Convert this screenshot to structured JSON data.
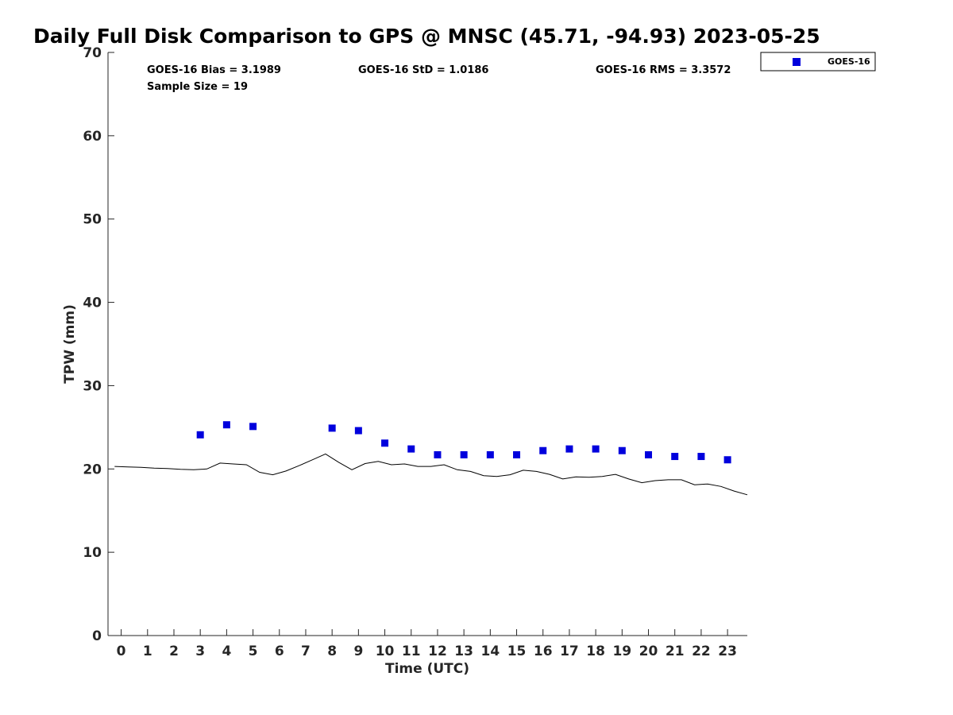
{
  "chart_data": {
    "type": "scatter",
    "title": "Daily Full Disk Comparison to GPS @ MNSC (45.71, -94.93) 2023-05-25",
    "xlabel": "Time (UTC)",
    "ylabel": "TPW (mm)",
    "xlim": [
      -0.5,
      23.75
    ],
    "ylim": [
      0,
      70
    ],
    "x_ticks": [
      0,
      1,
      2,
      3,
      4,
      5,
      6,
      7,
      8,
      9,
      10,
      11,
      12,
      13,
      14,
      15,
      16,
      17,
      18,
      19,
      20,
      21,
      22,
      23
    ],
    "y_ticks": [
      0,
      10,
      20,
      30,
      40,
      50,
      60,
      70
    ],
    "grid": false,
    "legend_position": "top-right",
    "stats": {
      "bias": "GOES-16 Bias = 3.1989",
      "std": "GOES-16 StD = 1.0186",
      "rms": "GOES-16 RMS = 3.3572",
      "sample": "Sample Size = 19"
    },
    "series": [
      {
        "name": "GOES-16",
        "type": "scatter",
        "color": "#0000dd",
        "marker": "square",
        "x": [
          3,
          4,
          5,
          8,
          9,
          10,
          11,
          12,
          13,
          14,
          15,
          16,
          17,
          18,
          19,
          20,
          21,
          22,
          23
        ],
        "y": [
          24.1,
          25.3,
          25.1,
          24.9,
          24.6,
          23.1,
          22.4,
          21.7,
          21.7,
          21.7,
          21.7,
          22.2,
          22.4,
          22.4,
          22.2,
          21.7,
          21.5,
          21.5,
          21.1
        ]
      },
      {
        "type": "line",
        "color": "#000000",
        "x": [
          -0.25,
          0.25,
          0.75,
          1.25,
          1.75,
          2.25,
          2.75,
          3.25,
          3.75,
          4.25,
          4.75,
          5.25,
          5.75,
          6.25,
          6.75,
          7.25,
          7.75,
          8.25,
          8.75,
          9.25,
          9.75,
          10.25,
          10.75,
          11.25,
          11.75,
          12.25,
          12.75,
          13.25,
          13.75,
          14.25,
          14.75,
          15.25,
          15.75,
          16.25,
          16.75,
          17.25,
          17.75,
          18.25,
          18.75,
          19.25,
          19.75,
          20.25,
          20.75,
          21.25,
          21.75,
          22.25,
          22.75,
          23.25,
          23.75
        ],
        "y": [
          20.3,
          20.25,
          20.2,
          20.1,
          20.05,
          19.95,
          19.9,
          20.0,
          20.7,
          20.6,
          20.5,
          19.6,
          19.3,
          19.75,
          20.4,
          21.1,
          21.8,
          20.8,
          19.9,
          20.65,
          20.9,
          20.5,
          20.6,
          20.3,
          20.3,
          20.5,
          19.9,
          19.7,
          19.2,
          19.1,
          19.3,
          19.85,
          19.7,
          19.35,
          18.8,
          19.05,
          19.0,
          19.1,
          19.35,
          18.8,
          18.35,
          18.6,
          18.7,
          18.7,
          18.1,
          18.2,
          17.9,
          17.35,
          16.9
        ]
      }
    ]
  }
}
